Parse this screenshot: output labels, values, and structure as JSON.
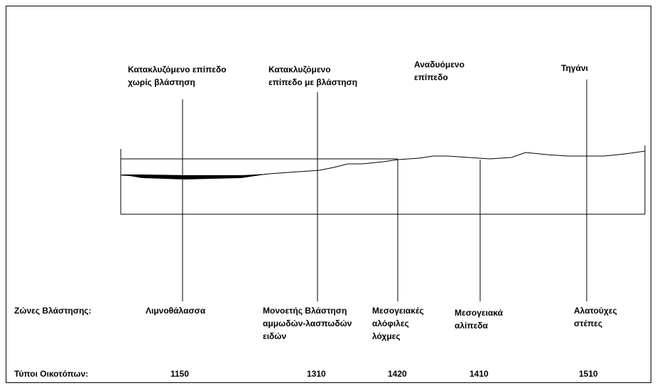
{
  "top_labels": [
    {
      "lines": [
        "Κατακλυζόμενο επίπεδο",
        "χωρίς βλάστηση"
      ]
    },
    {
      "lines": [
        "Κατακλυζόμενο",
        "επίπεδο με βλάστηση"
      ]
    },
    {
      "lines": [
        "Αναδυόμενο",
        "επίπεδο"
      ]
    },
    {
      "lines": [
        "Τηγάνι"
      ]
    }
  ],
  "zones": {
    "label": "Ζώνες Βλάστησης:",
    "items": [
      {
        "lines": [
          "Λιμνοθάλασσα"
        ]
      },
      {
        "lines": [
          "Μονοετής Βλάστηση",
          "αμμωδών-λασπωδών",
          "ειδών"
        ]
      },
      {
        "lines": [
          "Μεσογειακές",
          "αλόφιλες",
          "λόχμες"
        ]
      },
      {
        "lines": [
          "Μεσογειακά",
          "αλίπεδα"
        ]
      },
      {
        "lines": [
          "Αλατούχες",
          "στέπες"
        ]
      }
    ]
  },
  "habitats": {
    "label": "Τύποι Οικοτόπων:",
    "codes": [
      1150,
      1310,
      1420,
      1410,
      1510
    ]
  }
}
